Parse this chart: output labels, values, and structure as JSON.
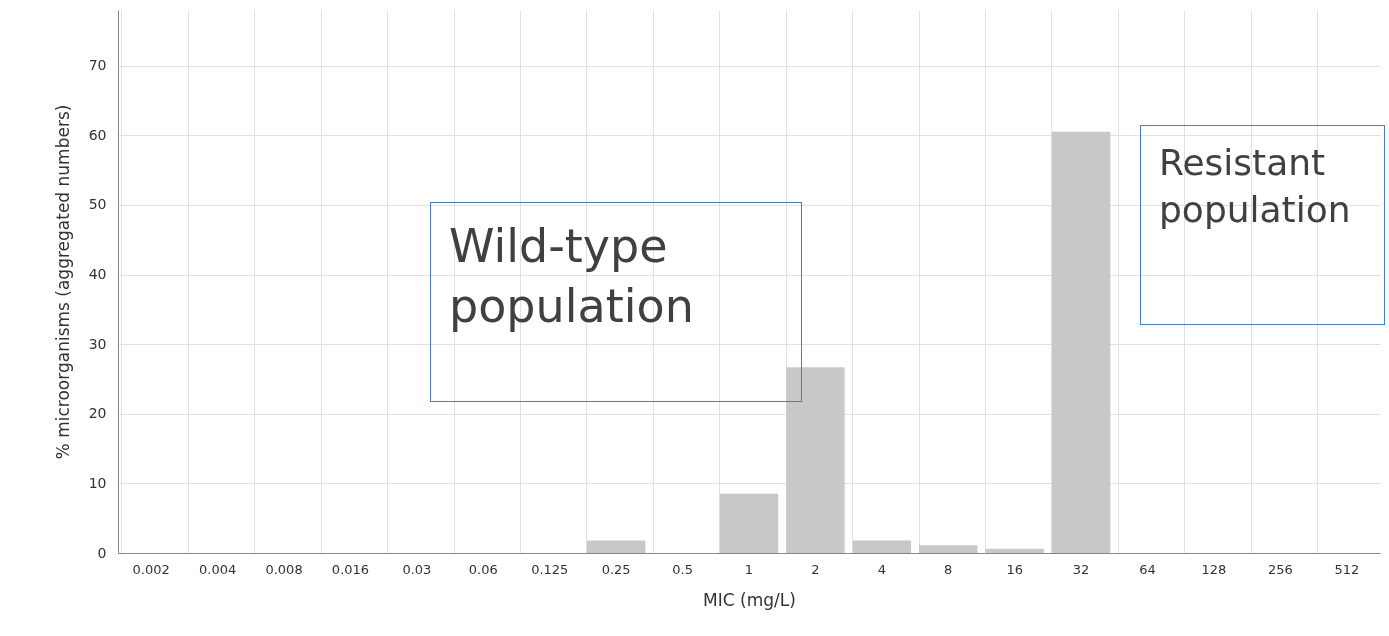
{
  "chart_data": {
    "type": "bar",
    "xlabel": "MIC (mg/L)",
    "ylabel": "% microorganisms (aggregated numbers)",
    "categories": [
      "0.002",
      "0.004",
      "0.008",
      "0.016",
      "0.03",
      "0.06",
      "0.125",
      "0.25",
      "0.5",
      "1",
      "2",
      "4",
      "8",
      "16",
      "32",
      "64",
      "128",
      "256",
      "512"
    ],
    "values": [
      0,
      0,
      0,
      0,
      0,
      0,
      0,
      1.8,
      0,
      8.5,
      26.7,
      1.8,
      1.1,
      0.6,
      60.5,
      0,
      0,
      0,
      0
    ],
    "color": "#c8c8c8",
    "ylim": [
      0,
      78
    ],
    "yticks": [
      0,
      10,
      20,
      30,
      40,
      50,
      60,
      70
    ],
    "grid": true,
    "annotations": [
      "Wild-type population",
      "Resistant population"
    ]
  }
}
